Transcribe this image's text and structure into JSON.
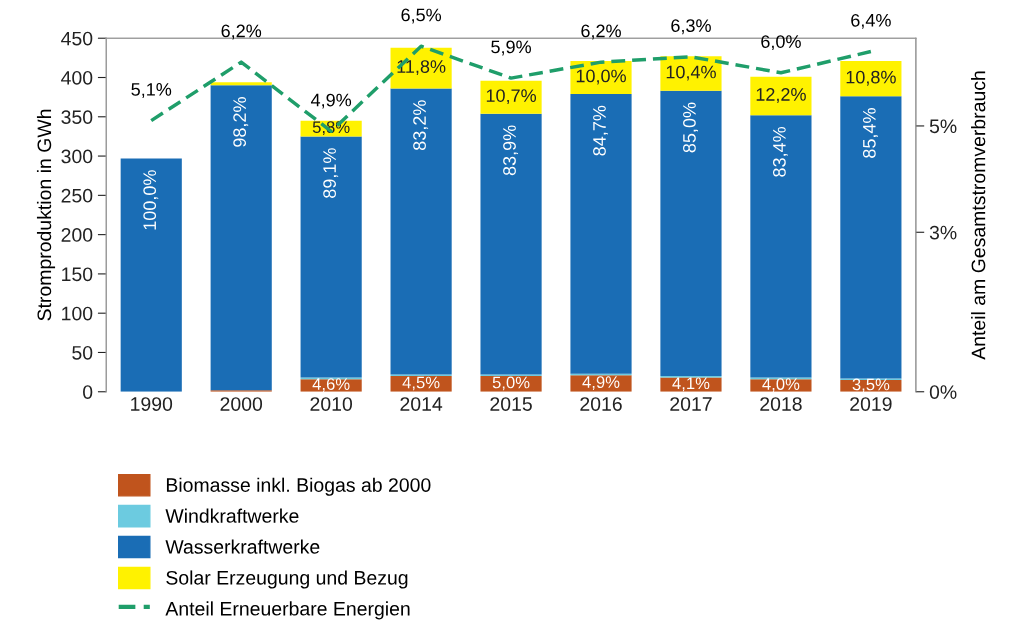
{
  "chart_data": {
    "type": "bar",
    "stacked": true,
    "ylabel": "Stromproduktion in GWh",
    "y2label": "Anteil am Gesamtstromverbrauch",
    "categories": [
      "1990",
      "2000",
      "2010",
      "2014",
      "2015",
      "2016",
      "2017",
      "2018",
      "2019"
    ],
    "ylim": [
      0,
      450
    ],
    "yticks": [
      0,
      50,
      100,
      150,
      200,
      250,
      300,
      350,
      400,
      450
    ],
    "y2lim": [
      0,
      6.65
    ],
    "y2ticks": [
      {
        "value": 0,
        "label": "0%"
      },
      {
        "value": 3,
        "label": "3%"
      },
      {
        "value": 5,
        "label": "5%"
      }
    ],
    "legend": "bottom",
    "grid": false,
    "series": [
      {
        "name": "Biomasse inkl. Biogas ab 2000",
        "color": "#c0541d",
        "values": [
          0,
          2,
          16,
          20,
          20,
          21,
          18,
          16,
          15
        ]
      },
      {
        "name": "Windkraftwerke",
        "color": "#6ccbe0",
        "values": [
          0,
          0,
          2,
          2,
          2,
          2,
          2,
          2,
          2
        ]
      },
      {
        "name": "Wasserkraftwerke",
        "color": "#1a6db5",
        "values": [
          297,
          388,
          307,
          364,
          332,
          356,
          363,
          334,
          359
        ]
      },
      {
        "name": "Solar Erzeugung und Bezug",
        "color": "#fff200",
        "values": [
          0,
          4,
          20,
          52,
          42,
          42,
          44,
          49,
          45
        ]
      },
      {
        "name": "Anteil Erneuerbare Energien",
        "type": "line",
        "axis": "y2",
        "color": "#1f9e6a",
        "line_style": "dashed",
        "marker": "none",
        "values": [
          5.1,
          6.2,
          4.9,
          6.5,
          5.9,
          6.2,
          6.3,
          6.0,
          6.4
        ],
        "value_labels": [
          "5,1%",
          "6,2%",
          "4,9%",
          "6,5%",
          "5,9%",
          "6,2%",
          "6,3%",
          "6,0%",
          "6,4%"
        ]
      }
    ],
    "annotations": [
      {
        "text": "4,6%",
        "x": "2010",
        "y": 16
      },
      {
        "text": "4,5%",
        "x": "2014",
        "y": 20
      },
      {
        "text": "5,0%",
        "x": "2015",
        "y": 20
      },
      {
        "text": "4,9%",
        "x": "2016",
        "y": 21
      },
      {
        "text": "4,1%",
        "x": "2017",
        "y": 18
      },
      {
        "text": "4,0%",
        "x": "2018",
        "y": 16
      },
      {
        "text": "3,5%",
        "x": "2019",
        "y": 15
      },
      {
        "text": "100,0%",
        "x": "1990",
        "y": 297
      },
      {
        "text": "98,2%",
        "x": "2000",
        "y": 390
      },
      {
        "text": "89,1%",
        "x": "2010",
        "y": 325
      },
      {
        "text": "83,2%",
        "x": "2014",
        "y": 386
      },
      {
        "text": "83,9%",
        "x": "2015",
        "y": 354
      },
      {
        "text": "84,7%",
        "x": "2016",
        "y": 379
      },
      {
        "text": "85,0%",
        "x": "2017",
        "y": 383
      },
      {
        "text": "83,4%",
        "x": "2018",
        "y": 352
      },
      {
        "text": "85,4%",
        "x": "2019",
        "y": 376
      },
      {
        "text": "5,8%",
        "x": "2010",
        "y": 345
      },
      {
        "text": "11,8%",
        "x": "2014",
        "y": 438
      },
      {
        "text": "10,7%",
        "x": "2015",
        "y": 396
      },
      {
        "text": "10,0%",
        "x": "2016",
        "y": 421
      },
      {
        "text": "10,4%",
        "x": "2017",
        "y": 427
      },
      {
        "text": "12,2%",
        "x": "2018",
        "y": 401
      },
      {
        "text": "10,8%",
        "x": "2019",
        "y": 421
      }
    ]
  }
}
